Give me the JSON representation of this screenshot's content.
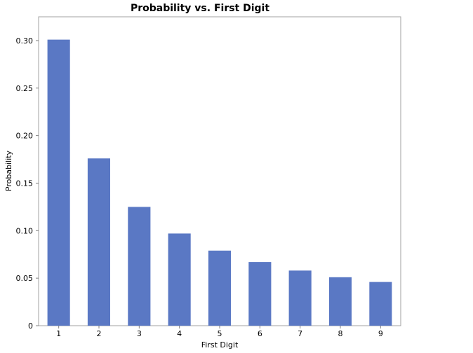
{
  "chart_data": {
    "type": "bar",
    "title": "Probability vs. First Digit",
    "xlabel": "First Digit",
    "ylabel": "Probability",
    "categories": [
      "1",
      "2",
      "3",
      "4",
      "5",
      "6",
      "7",
      "8",
      "9"
    ],
    "values": [
      0.301,
      0.176,
      0.125,
      0.097,
      0.079,
      0.067,
      0.058,
      0.051,
      0.046
    ],
    "ylim": [
      0,
      0.325
    ],
    "yticks": [
      0,
      0.05,
      0.1,
      0.15,
      0.2,
      0.25,
      0.3
    ],
    "ytick_labels": [
      "0",
      "0.05",
      "0.10",
      "0.15",
      "0.20",
      "0.25",
      "0.30"
    ],
    "grid": false,
    "bar_color": "#5a78c4"
  }
}
